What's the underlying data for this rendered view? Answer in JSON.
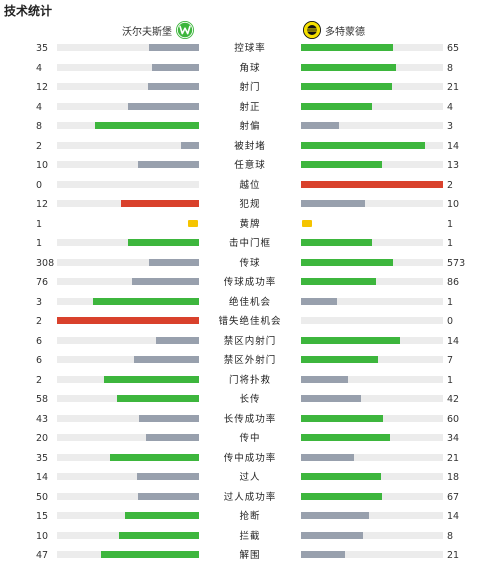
{
  "title": "技术统计",
  "colors": {
    "green": "#3db63d",
    "gray": "#98a0ad",
    "red": "#d9412c",
    "track": "#ececec",
    "yellow": "#f5c400"
  },
  "home": {
    "name": "沃尔夫斯堡",
    "logo": "wolfsburg-logo"
  },
  "away": {
    "name": "多特蒙德",
    "logo": "dortmund-logo"
  },
  "stats": [
    {
      "label": "控球率",
      "home": "35",
      "away": "65",
      "home_frac": 0.35,
      "away_frac": 0.65,
      "home_color": "gray",
      "away_color": "green"
    },
    {
      "label": "角球",
      "home": "4",
      "away": "8",
      "home_frac": 0.33,
      "away_frac": 0.67,
      "home_color": "gray",
      "away_color": "green"
    },
    {
      "label": "射门",
      "home": "12",
      "away": "21",
      "home_frac": 0.36,
      "away_frac": 0.64,
      "home_color": "gray",
      "away_color": "green"
    },
    {
      "label": "射正",
      "home": "4",
      "away": "4",
      "home_frac": 0.5,
      "away_frac": 0.5,
      "home_color": "gray",
      "away_color": "green"
    },
    {
      "label": "射偏",
      "home": "8",
      "away": "3",
      "home_frac": 0.73,
      "away_frac": 0.27,
      "home_color": "green",
      "away_color": "gray"
    },
    {
      "label": "被封堵",
      "home": "2",
      "away": "14",
      "home_frac": 0.13,
      "away_frac": 0.87,
      "home_color": "gray",
      "away_color": "green"
    },
    {
      "label": "任意球",
      "home": "10",
      "away": "13",
      "home_frac": 0.43,
      "away_frac": 0.57,
      "home_color": "gray",
      "away_color": "green"
    },
    {
      "label": "越位",
      "home": "0",
      "away": "2",
      "home_frac": 0,
      "away_frac": 1.0,
      "home_color": "gray",
      "away_color": "red"
    },
    {
      "label": "犯规",
      "home": "12",
      "away": "10",
      "home_frac": 0.55,
      "away_frac": 0.45,
      "home_color": "red",
      "away_color": "gray"
    },
    {
      "label": "黄牌",
      "home": "1",
      "away": "1",
      "card": true
    },
    {
      "label": "击中门框",
      "home": "1",
      "away": "1",
      "home_frac": 0.5,
      "away_frac": 0.5,
      "home_color": "green",
      "away_color": "green"
    },
    {
      "label": "传球",
      "home": "308",
      "away": "573",
      "home_frac": 0.35,
      "away_frac": 0.65,
      "home_color": "gray",
      "away_color": "green"
    },
    {
      "label": "传球成功率",
      "home": "76",
      "away": "86",
      "home_frac": 0.47,
      "away_frac": 0.53,
      "home_color": "gray",
      "away_color": "green"
    },
    {
      "label": "绝佳机会",
      "home": "3",
      "away": "1",
      "home_frac": 0.75,
      "away_frac": 0.25,
      "home_color": "green",
      "away_color": "gray"
    },
    {
      "label": "错失绝佳机会",
      "home": "2",
      "away": "0",
      "home_frac": 1.0,
      "away_frac": 0,
      "home_color": "red",
      "away_color": "gray"
    },
    {
      "label": "禁区内射门",
      "home": "6",
      "away": "14",
      "home_frac": 0.3,
      "away_frac": 0.7,
      "home_color": "gray",
      "away_color": "green"
    },
    {
      "label": "禁区外射门",
      "home": "6",
      "away": "7",
      "home_frac": 0.46,
      "away_frac": 0.54,
      "home_color": "gray",
      "away_color": "green"
    },
    {
      "label": "门将扑救",
      "home": "2",
      "away": "1",
      "home_frac": 0.67,
      "away_frac": 0.33,
      "home_color": "green",
      "away_color": "gray"
    },
    {
      "label": "长传",
      "home": "58",
      "away": "42",
      "home_frac": 0.58,
      "away_frac": 0.42,
      "home_color": "green",
      "away_color": "gray"
    },
    {
      "label": "长传成功率",
      "home": "43",
      "away": "60",
      "home_frac": 0.42,
      "away_frac": 0.58,
      "home_color": "gray",
      "away_color": "green"
    },
    {
      "label": "传中",
      "home": "20",
      "away": "34",
      "home_frac": 0.37,
      "away_frac": 0.63,
      "home_color": "gray",
      "away_color": "green"
    },
    {
      "label": "传中成功率",
      "home": "35",
      "away": "21",
      "home_frac": 0.63,
      "away_frac": 0.37,
      "home_color": "green",
      "away_color": "gray"
    },
    {
      "label": "过人",
      "home": "14",
      "away": "18",
      "home_frac": 0.44,
      "away_frac": 0.56,
      "home_color": "gray",
      "away_color": "green"
    },
    {
      "label": "过人成功率",
      "home": "50",
      "away": "67",
      "home_frac": 0.43,
      "away_frac": 0.57,
      "home_color": "gray",
      "away_color": "green"
    },
    {
      "label": "抢断",
      "home": "15",
      "away": "14",
      "home_frac": 0.52,
      "away_frac": 0.48,
      "home_color": "green",
      "away_color": "gray"
    },
    {
      "label": "拦截",
      "home": "10",
      "away": "8",
      "home_frac": 0.56,
      "away_frac": 0.44,
      "home_color": "green",
      "away_color": "gray"
    },
    {
      "label": "解围",
      "home": "47",
      "away": "21",
      "home_frac": 0.69,
      "away_frac": 0.31,
      "home_color": "green",
      "away_color": "gray"
    }
  ]
}
